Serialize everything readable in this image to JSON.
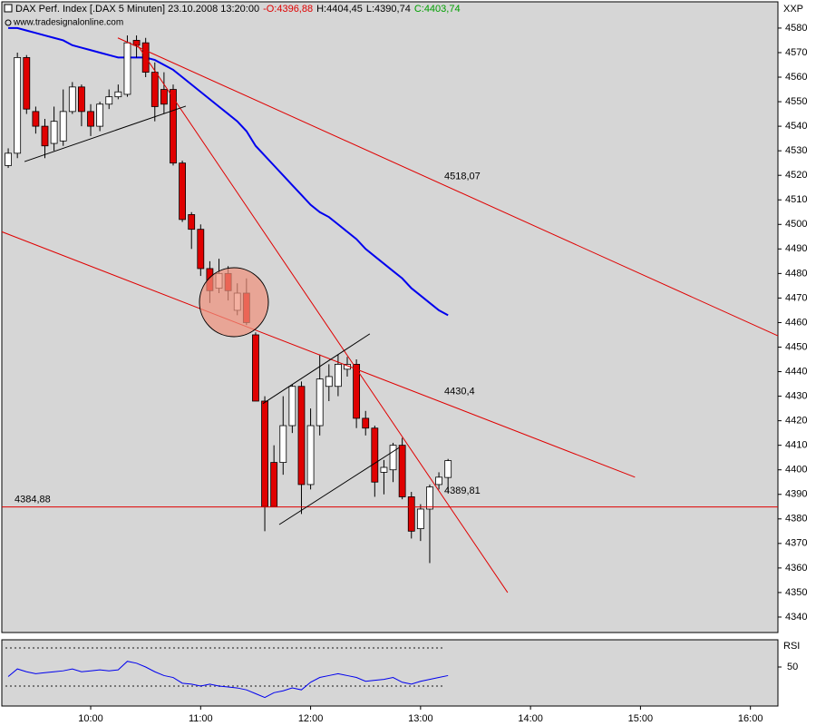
{
  "chart_data": [
    {
      "type": "candlestick",
      "title": "DAX Perf. Index [.DAX  5 Minuten] 23.10.2008 13:20:00",
      "open_label": "-O:4396,88",
      "high_label": "H:4404,45",
      "low_label": "L:4390,74",
      "close_label": "C:4403,74",
      "watermark": "www.tradesignalonline.com",
      "axis_label": "XXP",
      "up_color": "#ffffff",
      "down_color": "#e00000",
      "outline_color": "#000000",
      "x": [
        555,
        560,
        565,
        570,
        575,
        580,
        585,
        590,
        595,
        600,
        605,
        610,
        615,
        620,
        625,
        630,
        635,
        640,
        645,
        650,
        655,
        660,
        665,
        670,
        675,
        680,
        685,
        690,
        695,
        700,
        705,
        710,
        715,
        720,
        725,
        730,
        735,
        740,
        745,
        750,
        755,
        760,
        765,
        770,
        775,
        780,
        785,
        790,
        795
      ],
      "open": [
        4524,
        4529,
        4568,
        4546,
        4540,
        4533,
        4534,
        4546,
        4556,
        4546,
        4540,
        4549,
        4552,
        4553,
        4575,
        4574,
        4562,
        4555,
        4555,
        4525,
        4504,
        4498,
        4482,
        4474,
        4480,
        4465,
        4472,
        4455,
        4428,
        4403,
        4403,
        4418,
        4434,
        4394,
        4418,
        4434,
        4434,
        4441,
        4443,
        4421,
        4417,
        4399,
        4400,
        4410,
        4389,
        4376,
        4384,
        4394,
        4396.88
      ],
      "high": [
        4531,
        4570,
        4569,
        4548,
        4543,
        4548,
        4555,
        4558,
        4557,
        4549,
        4550,
        4555,
        4557,
        4577,
        4577,
        4576,
        4566,
        4562,
        4557,
        4526,
        4505,
        4500,
        4485,
        4486,
        4483,
        4476,
        4478,
        4456,
        4430,
        4410,
        4430,
        4435,
        4436,
        4425,
        4447,
        4443,
        4447,
        4446,
        4445,
        4424,
        4418,
        4404,
        4411,
        4413,
        4391,
        4386,
        4394,
        4399,
        4404.45
      ],
      "low": [
        4523,
        4527,
        4545,
        4537,
        4527,
        4530,
        4532,
        4545,
        4540,
        4536,
        4538,
        4547,
        4551,
        4552,
        4568,
        4560,
        4542,
        4545,
        4524,
        4501,
        4490,
        4479,
        4468,
        4472,
        4469,
        4463,
        4459,
        4428,
        4375,
        4385,
        4398,
        4415,
        4382,
        4392,
        4414,
        4428,
        4430,
        4438,
        4417,
        4414,
        4389,
        4390,
        4395,
        4388,
        4372,
        4371,
        4362,
        4392,
        4390.74
      ],
      "close": [
        4529,
        4568,
        4547,
        4540,
        4532,
        4542,
        4546,
        4556,
        4546,
        4540,
        4549,
        4552,
        4554,
        4574,
        4573,
        4562,
        4548,
        4549,
        4525,
        4502,
        4498,
        4482,
        4473,
        4480,
        4473,
        4472,
        4460,
        4428,
        4385,
        4385,
        4418,
        4434,
        4394,
        4418,
        4437,
        4438,
        4443,
        4443,
        4421,
        4417,
        4395,
        4401,
        4410,
        4389,
        4375,
        4384,
        4393,
        4397,
        4403.74
      ],
      "ma": {
        "color": "#0000ee",
        "values": [
          4580,
          4580,
          4579,
          4578,
          4577,
          4576,
          4575,
          4573,
          4572,
          4571,
          4570,
          4569,
          4568,
          4568,
          4568,
          4568,
          4567,
          4565,
          4563,
          4560,
          4557,
          4554,
          4551,
          4548,
          4545,
          4542,
          4538,
          4532,
          4528,
          4524,
          4520,
          4516,
          4512,
          4508,
          4505,
          4503,
          4500,
          4497,
          4494,
          4490,
          4487,
          4484,
          4481,
          4478,
          4474,
          4471,
          4468,
          4465,
          4463
        ]
      },
      "trendlines": [
        {
          "color": "#e00000",
          "x": [
            614.8,
            975
          ],
          "y": [
            4576,
            4454.6
          ],
          "label": {
            "value": 4518.07,
            "label": "4518,07"
          }
        },
        {
          "color": "#e00000",
          "x": [
            551.5,
            897
          ],
          "y": [
            4497,
            4397
          ],
          "label": {
            "value": 4430.4,
            "label": "4430,4"
          }
        },
        {
          "color": "#e00000",
          "x": [
            624.7,
            827.5
          ],
          "y": [
            4574,
            4350
          ],
          "label": {
            "value": 4389.81,
            "label": "4389,81"
          }
        },
        {
          "color": "#e00000",
          "x": [
            551.5,
            975
          ],
          "y": [
            4384.88,
            4384.88
          ],
          "label": {
            "value": 4384.88,
            "label": "4384,88"
          }
        },
        {
          "color": "#000000",
          "x": [
            563.9,
            651.9
          ],
          "y": [
            4525.6,
            4548.2
          ]
        },
        {
          "color": "#000000",
          "x": [
            694,
            752.3
          ],
          "y": [
            4427,
            4455.4
          ]
        },
        {
          "color": "#000000",
          "x": [
            702.9,
            768.2
          ],
          "y": [
            4377.7,
            4409
          ]
        }
      ],
      "xlim": [
        551.5,
        975
      ],
      "ylim": [
        4333.7,
        4590.7
      ],
      "yticks": [
        4340,
        4350,
        4360,
        4370,
        4380,
        4390,
        4400,
        4410,
        4420,
        4430,
        4440,
        4450,
        4460,
        4470,
        4480,
        4490,
        4500,
        4510,
        4520,
        4530,
        4540,
        4550,
        4560,
        4570,
        4580
      ]
    },
    {
      "type": "line",
      "title": "RSI",
      "series": [
        {
          "color": "#0000ee",
          "values": [
            40,
            48,
            45,
            43,
            44,
            45,
            46,
            48,
            45,
            46,
            47,
            46,
            47,
            56,
            54,
            50,
            45,
            41,
            39,
            33,
            32,
            30,
            32,
            30,
            29,
            28,
            26,
            22,
            18,
            23,
            25,
            28,
            26,
            34,
            39,
            41,
            43,
            41,
            39,
            35,
            36,
            37,
            39,
            34,
            32,
            35,
            37,
            39,
            41
          ]
        }
      ],
      "levels": [
        70,
        30
      ],
      "xlim": [
        551.5,
        975
      ],
      "ylim": [
        9,
        78.6
      ],
      "yticks": [
        50
      ],
      "xticks": [
        {
          "value": 600,
          "label": "10:00"
        },
        {
          "value": 660,
          "label": "11:00"
        },
        {
          "value": 720,
          "label": "12:00"
        },
        {
          "value": 780,
          "label": "13:00"
        },
        {
          "value": 840,
          "label": "14:00"
        },
        {
          "value": 900,
          "label": "15:00"
        },
        {
          "value": 960,
          "label": "16:00"
        }
      ]
    }
  ]
}
